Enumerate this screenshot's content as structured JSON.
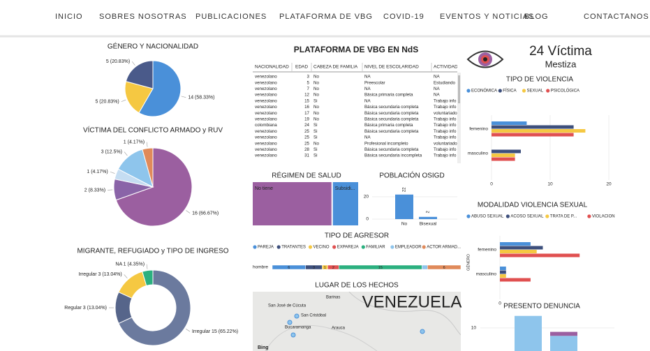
{
  "nav": [
    "INICIO",
    "SOBRES NOSOTRAS",
    "PUBLICACIONES",
    "PLATAFORMA DE VBG",
    "COVID-19",
    "EVENTOS Y NOTICIAS",
    "BLOG",
    "CONTACTANOS"
  ],
  "gender": {
    "type": "pie",
    "title": "GÉNERO Y NACIONALIDAD",
    "values": [
      14,
      5,
      5
    ],
    "value_labels": [
      "14 (58.33%)",
      "5 (20.83%)",
      "5 (20.83%)"
    ],
    "colors": [
      "#4a90d9",
      "#f5c842",
      "#4a5a8a"
    ]
  },
  "conflict": {
    "type": "pie",
    "title": "VÍCTIMA DEL CONFLICTO ARMADO  y RUV",
    "values": [
      16,
      2,
      1,
      3,
      1
    ],
    "value_labels": [
      "16 (66.67%)",
      "2 (8.33%)",
      "1 (4.17%)",
      "3 (12.5%)",
      "1 (4.17%)"
    ],
    "colors": [
      "#9b5fa0",
      "#8a64a8",
      "#c5ddf2",
      "#8ec5ec",
      "#e08a5a"
    ]
  },
  "migrant": {
    "type": "donut",
    "title": "MIGRANTE, REFUGIADO y TIPO DE INGRESO",
    "values": [
      15,
      3,
      3,
      1
    ],
    "value_labels": [
      "Irregular 15 (65.22%)",
      "Regular 3 (13.04%)",
      "Irregular 3 (13.04%)",
      "NA 1 (4.35%)"
    ],
    "colors": [
      "#6b7a9e",
      "#56658a",
      "#f5c842",
      "#2bb07f"
    ]
  },
  "table": {
    "title": "PLATAFORMA DE VBG EN NdS",
    "columns": [
      "NACIONALIDAD",
      "EDAD",
      "CABEZA DE FAMILIA",
      "NIVEL DE ESCOLARIDAD",
      "ACTIVIDAD"
    ],
    "rows": [
      [
        "venezolano",
        3,
        "No",
        "NA",
        "NA"
      ],
      [
        "venezolano",
        5,
        "No",
        "Preescolar",
        "Estudiando"
      ],
      [
        "venezolano",
        7,
        "No",
        "NA",
        "NA"
      ],
      [
        "venezolano",
        12,
        "No",
        "Básica primaria completa",
        "NA"
      ],
      [
        "venezolano",
        15,
        "Si",
        "NA",
        "Trabajo info"
      ],
      [
        "venezolano",
        16,
        "No",
        "Básica secundaria completa",
        "Trabajo info"
      ],
      [
        "venezolano",
        17,
        "No",
        "Básica secundaria completa",
        "voluntariado"
      ],
      [
        "venezolano",
        19,
        "No",
        "Básica secundaria completa",
        "Trabajo info"
      ],
      [
        "colombiana",
        24,
        "Si",
        "Básica primaria completa",
        "Trabajo info"
      ],
      [
        "venezolano",
        25,
        "Si",
        "Básica secundaria completa",
        "Trabajo info"
      ],
      [
        "venezolano",
        25,
        "Si",
        "NA",
        "Trabajo info"
      ],
      [
        "venezolano",
        25,
        "No",
        "Profesional incompleto",
        "voluntariado"
      ],
      [
        "venezolano",
        28,
        "Si",
        "Básica secundaria completa",
        "Trabajo info"
      ],
      [
        "venezolano",
        31,
        "Si",
        "Básica secundaria incompleta",
        "Trabajo info"
      ]
    ]
  },
  "regimen": {
    "title": "RÉGIMEN DE SALUD",
    "labels": [
      "No tiene",
      "Subsidi..."
    ],
    "values": [
      18,
      6
    ],
    "colors": [
      "#9b5fa0",
      "#4a90d9"
    ]
  },
  "osigd": {
    "type": "bar",
    "title": "POBLACIÓN OSIGD",
    "categories": [
      "No",
      "Bisexual"
    ],
    "values": [
      22,
      2
    ],
    "ylim": [
      0,
      25
    ],
    "yticks": [
      0,
      20
    ],
    "color": "#4a90d9"
  },
  "agresor": {
    "title": "TIPO DE AGRESOR",
    "category": "hombre",
    "series": [
      {
        "name": "PAREJA",
        "color": "#4a90d9",
        "values": [
          6
        ]
      },
      {
        "name": "TRATANTES",
        "color": "#3d4f7c",
        "values": [
          3
        ]
      },
      {
        "name": "VECINO",
        "color": "#f5c842",
        "values": [
          1
        ]
      },
      {
        "name": "EXPAREJA",
        "color": "#e05050",
        "values": [
          2
        ]
      },
      {
        "name": "FAMILIAR",
        "color": "#2bb07f",
        "values": [
          15
        ]
      },
      {
        "name": "EMPLEADOR",
        "color": "#8ec5ec",
        "values": [
          1
        ]
      },
      {
        "name": "ACTOR ARMAD...",
        "color": "#e08a5a",
        "values": [
          6
        ]
      }
    ],
    "value_labels": [
      "6",
      "3",
      "1",
      "2",
      "15",
      null,
      "6"
    ]
  },
  "map": {
    "title": "LUGAR DE LOS HECHOS",
    "country": "VENEZUELA",
    "places": [
      "San José de Cúcuta",
      "Barinas",
      "San Cristóbal",
      "Bucaramanga",
      "Arauca"
    ],
    "attribution": "Bing"
  },
  "card": {
    "count": "24 Víctima",
    "subtitle": "Mestiza"
  },
  "violencia": {
    "title": "TIPO DE VIOLENCIA",
    "categories": [
      "femenino",
      "masculino"
    ],
    "series": [
      {
        "name": "ECONÓMICA",
        "color": "#4a90d9",
        "values": [
          6,
          0
        ]
      },
      {
        "name": "FÍSICA",
        "color": "#3d4f7c",
        "values": [
          14,
          5
        ]
      },
      {
        "name": "SEXUAL",
        "color": "#f5c842",
        "values": [
          16,
          4
        ]
      },
      {
        "name": "PSICOLÓGICA",
        "color": "#e05050",
        "values": [
          14,
          4
        ]
      }
    ],
    "xlim": [
      0,
      20
    ],
    "xticks": [
      0,
      10,
      20
    ]
  },
  "modalidad": {
    "title": "MODALIDAD VIOLENCIA SEXUAL",
    "ylabel": "GÉNERO",
    "categories": [
      "femenino",
      "masculino"
    ],
    "series": [
      {
        "name": "ABUSO SEXUAL",
        "color": "#4a90d9",
        "values": [
          5,
          1
        ]
      },
      {
        "name": "ACOSO SEXUAL",
        "color": "#3d4f7c",
        "values": [
          7,
          1
        ]
      },
      {
        "name": "TRATA DE P...",
        "color": "#f5c842",
        "values": [
          6,
          1
        ]
      },
      {
        "name": "VIOLACION",
        "color": "#e05050",
        "values": [
          13,
          5
        ]
      }
    ],
    "xlim": [
      0,
      14
    ],
    "xticks": [
      0
    ]
  },
  "denuncia": {
    "title": "PRESENTO DENUNCIA",
    "series": [
      {
        "color": "#8ec5ec",
        "values": [
          13,
          8
        ]
      },
      {
        "color": "#9b5fa0",
        "values": [
          0,
          1
        ]
      }
    ],
    "ylim": [
      0,
      14
    ],
    "yticks": [
      10
    ]
  }
}
